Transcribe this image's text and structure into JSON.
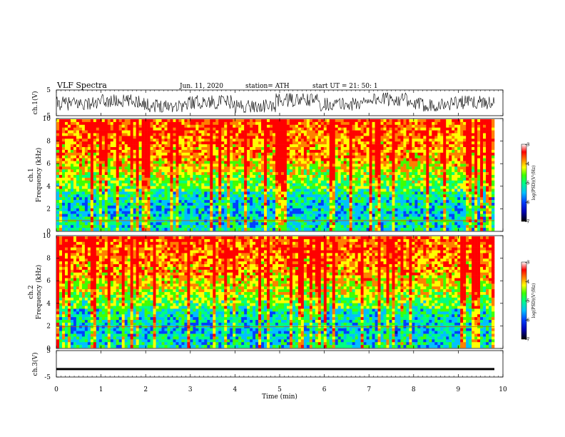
{
  "header": {
    "title": "VLF  Spectra",
    "date": "Jun. 11, 2020",
    "station": "station= ATH",
    "start": "start  UT  =    21: 50: 1"
  },
  "chart_data": [
    {
      "type": "line",
      "panel": "ch1-waveform",
      "ylabel": "ch.1(V)",
      "ylim": [
        -5,
        5
      ],
      "yticks": [
        "5",
        "-5"
      ],
      "description_series": [
        {
          "values": [
            -0.5,
            1.2,
            -1.8,
            0.6,
            -2.4,
            1.9,
            -0.9,
            2.6,
            -1.3,
            0.4
          ]
        }
      ]
    },
    {
      "type": "heatmap",
      "panel": "ch1-spectrogram",
      "ylabel": "Frequency  (kHz)",
      "ylabel2": "ch.1",
      "ylim": [
        0,
        10
      ],
      "yticks": [
        "0",
        "2",
        "4",
        "6",
        "8",
        "10"
      ],
      "colorbar": {
        "label": "log(PSD)(V²/Hz)",
        "range": [
          -7,
          -3
        ],
        "ticks": [
          "-3",
          "-4",
          "-5",
          "-6",
          "-7"
        ]
      }
    },
    {
      "type": "heatmap",
      "panel": "ch2-spectrogram",
      "ylabel": "Frequency  (kHz)",
      "ylabel2": "ch.2",
      "ylim": [
        0,
        10
      ],
      "yticks": [
        "0",
        "2",
        "4",
        "6",
        "8",
        "10"
      ],
      "colorbar": {
        "label": "log(PSD)(V²/Hz)",
        "range": [
          -7,
          -3
        ],
        "ticks": [
          "-3",
          "-4",
          "-5",
          "-6",
          "-7"
        ]
      }
    },
    {
      "type": "line",
      "panel": "ch3-waveform",
      "ylabel": "ch.3(V)",
      "ylim": [
        -5,
        5
      ],
      "yticks": [
        "5",
        "-5"
      ],
      "series": [
        {
          "values": [
            -2,
            -2,
            -2,
            -2,
            -2,
            -2,
            -2,
            -2,
            -2,
            -2
          ]
        }
      ]
    }
  ],
  "xaxis": {
    "label": "Time  (min)",
    "xlim": [
      0,
      10
    ],
    "ticks": [
      "0",
      "1",
      "2",
      "3",
      "4",
      "5",
      "6",
      "7",
      "8",
      "9",
      "10"
    ]
  },
  "colors": {
    "spectrum": [
      "#000000",
      "#0000b0",
      "#0040ff",
      "#00c0ff",
      "#00ff80",
      "#40ff00",
      "#ffff00",
      "#ff8000",
      "#ff0000",
      "#ffffff"
    ]
  }
}
